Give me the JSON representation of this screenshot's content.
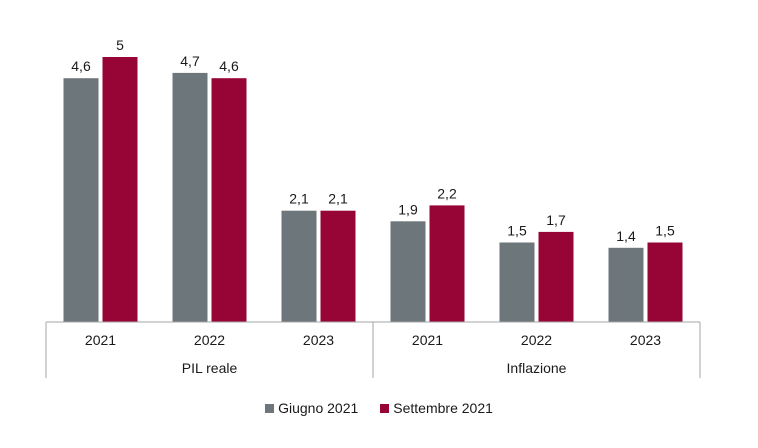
{
  "chart_data": {
    "type": "bar",
    "groups": [
      {
        "name": "PIL reale",
        "categories": [
          "2021",
          "2022",
          "2023"
        ]
      },
      {
        "name": "Inflazione",
        "categories": [
          "2021",
          "2022",
          "2023"
        ]
      }
    ],
    "categories": [
      "2021",
      "2022",
      "2023",
      "2021",
      "2022",
      "2023"
    ],
    "series": [
      {
        "name": "Giugno 2021",
        "color": "#6d777b",
        "values": [
          4.6,
          4.7,
          2.1,
          1.9,
          1.5,
          1.4
        ],
        "labels": [
          "4,6",
          "4,7",
          "2,1",
          "1,9",
          "1,5",
          "1,4"
        ]
      },
      {
        "name": "Settembre 2021",
        "color": "#960535",
        "values": [
          5,
          4.6,
          2.1,
          2.2,
          1.7,
          1.5
        ],
        "labels": [
          "5",
          "4,6",
          "2,1",
          "2,2",
          "1,7",
          "1,5"
        ]
      }
    ],
    "ylim": [
      0,
      5
    ],
    "grid": false,
    "legend_position": "bottom"
  }
}
